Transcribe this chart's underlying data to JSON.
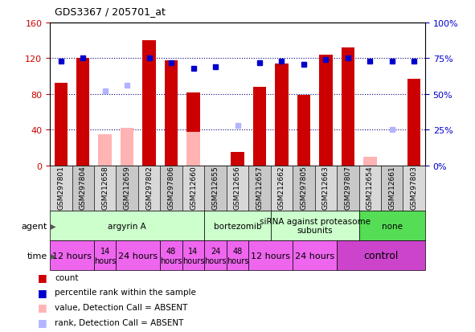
{
  "title": "GDS3367 / 205701_at",
  "samples": [
    "GSM297801",
    "GSM297804",
    "GSM212658",
    "GSM212659",
    "GSM297802",
    "GSM297806",
    "GSM212660",
    "GSM212655",
    "GSM212656",
    "GSM212657",
    "GSM212662",
    "GSM297805",
    "GSM212663",
    "GSM297807",
    "GSM212654",
    "GSM212661",
    "GSM297803"
  ],
  "count_values": [
    93,
    120,
    null,
    null,
    140,
    118,
    82,
    null,
    15,
    88,
    114,
    79,
    124,
    132,
    null,
    null,
    97
  ],
  "count_absent": [
    null,
    null,
    35,
    42,
    null,
    null,
    38,
    null,
    null,
    null,
    null,
    null,
    null,
    null,
    10,
    null,
    null
  ],
  "rank_values": [
    73,
    75,
    null,
    null,
    75,
    72,
    68,
    69,
    null,
    72,
    73,
    71,
    74,
    75,
    73,
    73,
    73
  ],
  "rank_absent": [
    null,
    null,
    52,
    56,
    null,
    null,
    null,
    null,
    28,
    null,
    null,
    null,
    null,
    null,
    null,
    25,
    null
  ],
  "left_ylim": [
    0,
    160
  ],
  "right_ylim": [
    0,
    100
  ],
  "left_yticks": [
    0,
    40,
    80,
    120,
    160
  ],
  "right_yticks": [
    0,
    25,
    50,
    75,
    100
  ],
  "right_yticklabels": [
    "0%",
    "25%",
    "50%",
    "75%",
    "100%"
  ],
  "bar_color_present": "#cc0000",
  "bar_color_absent": "#ffb3b3",
  "rank_color_present": "#0000cc",
  "rank_color_absent": "#b3b3ff",
  "grid_color": "#000080",
  "agent_groups": [
    {
      "label": "argyrin A",
      "start": 0,
      "end": 7,
      "color": "#ccffcc"
    },
    {
      "label": "bortezomib",
      "start": 7,
      "end": 10,
      "color": "#ccffcc"
    },
    {
      "label": "siRNA against proteasome\nsubunits",
      "start": 10,
      "end": 14,
      "color": "#ccffcc"
    },
    {
      "label": "none",
      "start": 14,
      "end": 17,
      "color": "#55dd55"
    }
  ],
  "time_groups": [
    {
      "label": "12 hours",
      "start": 0,
      "end": 2,
      "color": "#ee66ee",
      "fontsize": 8
    },
    {
      "label": "14\nhours",
      "start": 2,
      "end": 3,
      "color": "#ee66ee",
      "fontsize": 7
    },
    {
      "label": "24 hours",
      "start": 3,
      "end": 5,
      "color": "#ee66ee",
      "fontsize": 8
    },
    {
      "label": "48\nhours",
      "start": 5,
      "end": 6,
      "color": "#ee66ee",
      "fontsize": 7
    },
    {
      "label": "14\nhours",
      "start": 6,
      "end": 7,
      "color": "#ee66ee",
      "fontsize": 7
    },
    {
      "label": "24\nhours",
      "start": 7,
      "end": 8,
      "color": "#ee66ee",
      "fontsize": 7
    },
    {
      "label": "48\nhours",
      "start": 8,
      "end": 9,
      "color": "#ee66ee",
      "fontsize": 7
    },
    {
      "label": "12 hours",
      "start": 9,
      "end": 11,
      "color": "#ee66ee",
      "fontsize": 8
    },
    {
      "label": "24 hours",
      "start": 11,
      "end": 13,
      "color": "#ee66ee",
      "fontsize": 8
    },
    {
      "label": "control",
      "start": 13,
      "end": 17,
      "color": "#cc44cc",
      "fontsize": 9
    }
  ],
  "xlabel_fontsize": 7,
  "ylabel_left_color": "#cc0000",
  "ylabel_right_color": "#0000cc"
}
